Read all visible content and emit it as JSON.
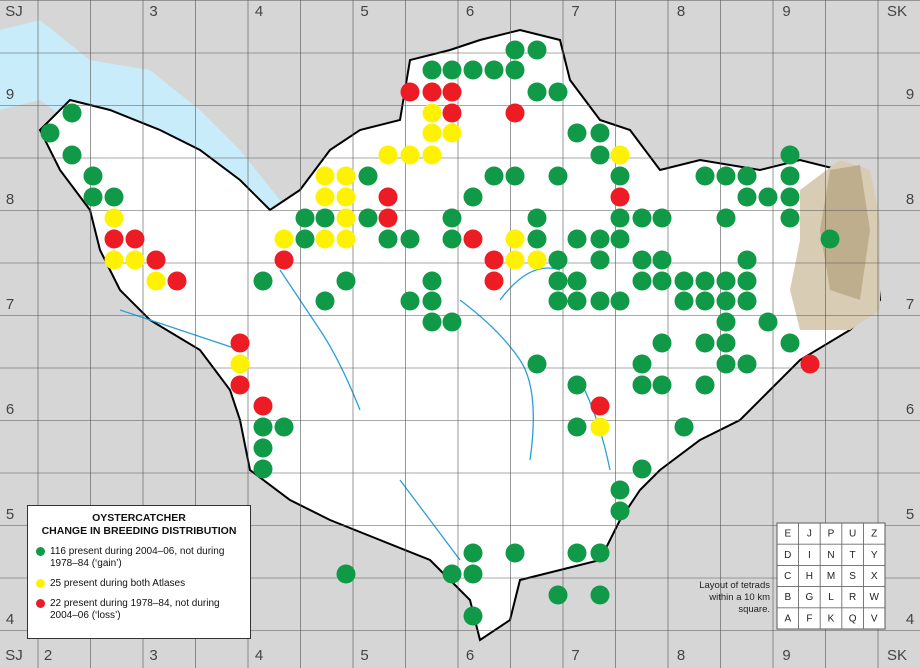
{
  "grid_labels": {
    "top_left": "SJ",
    "top_right": "SK",
    "bottom_left": "SJ",
    "bottom_right": "SK",
    "eastings": [
      "2",
      "3",
      "4",
      "5",
      "6",
      "7",
      "8",
      "9"
    ],
    "northings": [
      "9",
      "8",
      "7",
      "6",
      "5",
      "4"
    ]
  },
  "legend": {
    "title": [
      "OYSTERCATCHER",
      "CHANGE IN BREEDING DISTRIBUTION"
    ],
    "items": [
      {
        "text": "116 present during 2004–06, not during 1978–84 (‘gain’)",
        "color": "#109a48"
      },
      {
        "text": "25 present during both Atlases",
        "color": "#fff200"
      },
      {
        "text": "22 present during 1978–84, not during 2004–06 (‘loss’)",
        "color": "#ed1c24"
      }
    ]
  },
  "tetrad_key": {
    "rows": [
      [
        "E",
        "J",
        "P",
        "U",
        "Z"
      ],
      [
        "D",
        "I",
        "N",
        "T",
        "Y"
      ],
      [
        "C",
        "H",
        "M",
        "S",
        "X"
      ],
      [
        "B",
        "G",
        "L",
        "R",
        "W"
      ],
      [
        "A",
        "F",
        "K",
        "Q",
        "V"
      ]
    ],
    "caption": "Layout of tetrads within a 10 km square."
  }
}
